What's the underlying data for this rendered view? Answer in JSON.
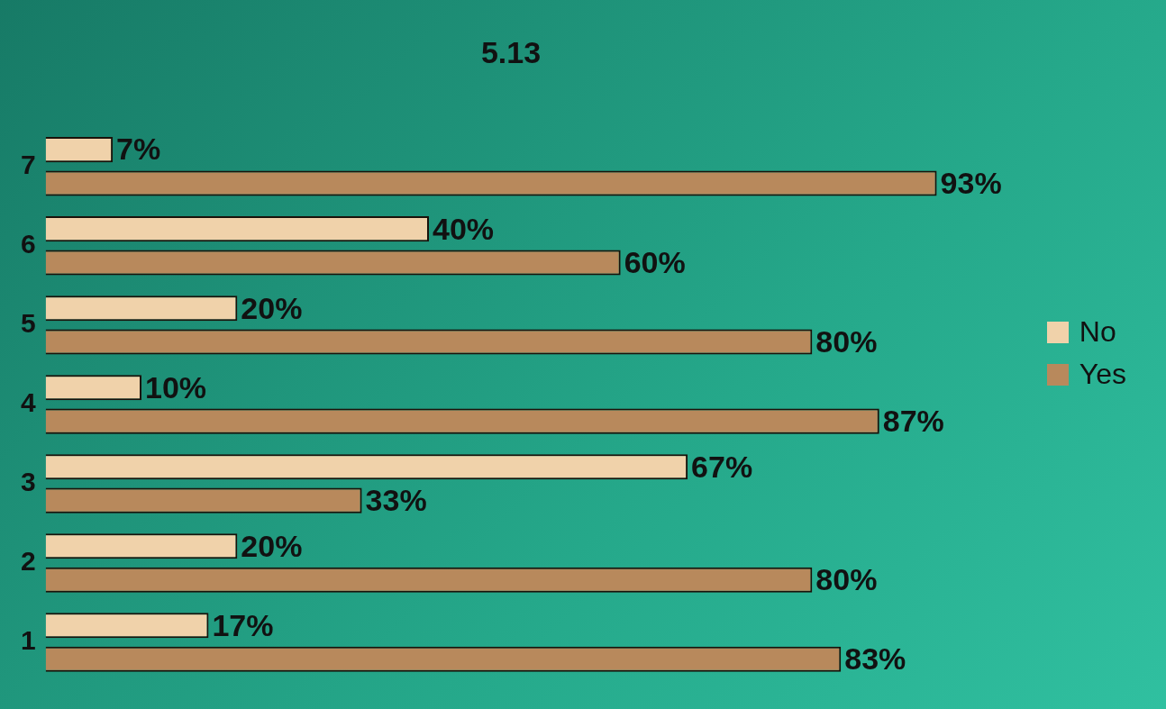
{
  "chart_data": {
    "type": "bar",
    "title": "5.13",
    "orientation": "horizontal",
    "categories": [
      "7",
      "6",
      "5",
      "4",
      "3",
      "2",
      "1"
    ],
    "series": [
      {
        "name": "No",
        "color": "#f0d2aa",
        "values": [
          7,
          40,
          20,
          10,
          67,
          20,
          17
        ],
        "value_labels": [
          "7%",
          "40%",
          "20%",
          "10%",
          "67%",
          "20%",
          "17%"
        ]
      },
      {
        "name": "Yes",
        "color": "#b8895c",
        "values": [
          93,
          60,
          80,
          87,
          33,
          80,
          83
        ],
        "value_labels": [
          "93%",
          "60%",
          "80%",
          "87%",
          "33%",
          "80%",
          "83%"
        ]
      }
    ],
    "legend": "right",
    "tick_labels": "y"
  }
}
